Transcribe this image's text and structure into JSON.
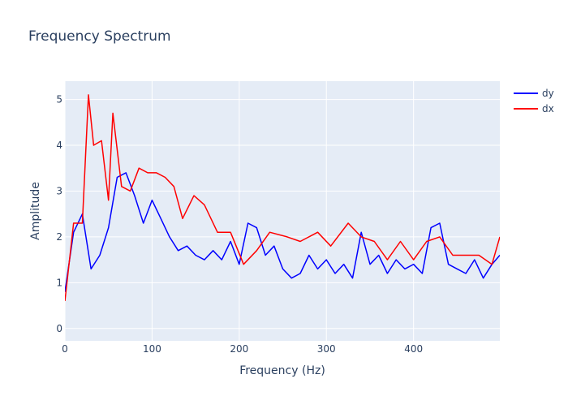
{
  "chart_data": {
    "type": "line",
    "title": "Frequency Spectrum",
    "xlabel": "Frequency (Hz)",
    "ylabel": "Amplitude",
    "xlim": [
      0,
      499
    ],
    "ylim": [
      -0.27,
      5.4
    ],
    "x_ticks": [
      0,
      100,
      200,
      300,
      400
    ],
    "y_ticks": [
      0,
      1,
      2,
      3,
      4,
      5
    ],
    "grid": true,
    "legend_position": "top-right",
    "series": [
      {
        "name": "dy",
        "color": "#0000ff",
        "x": [
          0,
          10,
          20,
          30,
          40,
          50,
          60,
          70,
          80,
          90,
          100,
          110,
          120,
          130,
          140,
          150,
          160,
          170,
          180,
          190,
          200,
          210,
          220,
          230,
          240,
          250,
          260,
          270,
          280,
          290,
          300,
          310,
          320,
          330,
          340,
          350,
          360,
          370,
          380,
          390,
          400,
          410,
          420,
          430,
          440,
          450,
          460,
          470,
          480,
          490,
          499
        ],
        "values": [
          0.8,
          2.1,
          2.5,
          1.3,
          1.6,
          2.2,
          3.3,
          3.4,
          2.9,
          2.3,
          2.8,
          2.4,
          2.0,
          1.7,
          1.8,
          1.6,
          1.5,
          1.7,
          1.5,
          1.9,
          1.4,
          2.3,
          2.2,
          1.6,
          1.8,
          1.3,
          1.1,
          1.2,
          1.6,
          1.3,
          1.5,
          1.2,
          1.4,
          1.1,
          2.1,
          1.4,
          1.6,
          1.2,
          1.5,
          1.3,
          1.4,
          1.2,
          2.2,
          2.3,
          1.4,
          1.3,
          1.2,
          1.5,
          1.1,
          1.4,
          1.6
        ]
      },
      {
        "name": "dx",
        "color": "#ff0000",
        "x": [
          0,
          10,
          20,
          27,
          33,
          42,
          50,
          55,
          65,
          75,
          85,
          95,
          105,
          115,
          125,
          135,
          148,
          160,
          175,
          190,
          205,
          220,
          235,
          255,
          270,
          290,
          305,
          325,
          340,
          355,
          370,
          385,
          400,
          415,
          430,
          445,
          460,
          475,
          490,
          499
        ],
        "values": [
          0.6,
          2.3,
          2.3,
          5.1,
          4.0,
          4.1,
          2.8,
          4.7,
          3.1,
          3.0,
          3.5,
          3.4,
          3.4,
          3.3,
          3.1,
          2.4,
          2.9,
          2.7,
          2.1,
          2.1,
          1.4,
          1.7,
          2.1,
          2.0,
          1.9,
          2.1,
          1.8,
          2.3,
          2.0,
          1.9,
          1.5,
          1.9,
          1.5,
          1.9,
          2.0,
          1.6,
          1.6,
          1.6,
          1.4,
          2.0
        ]
      }
    ]
  }
}
